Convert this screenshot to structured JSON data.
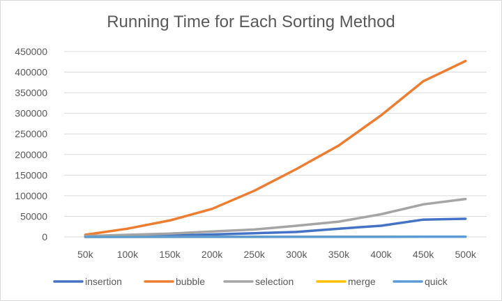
{
  "chart_data": {
    "type": "line",
    "title": "Running Time for Each Sorting Method",
    "xlabel": "",
    "ylabel": "",
    "categories": [
      "50k",
      "100k",
      "150k",
      "200k",
      "250k",
      "300k",
      "350k",
      "400k",
      "450k",
      "500k"
    ],
    "ylim": [
      0,
      450000
    ],
    "yticks": [
      0,
      50000,
      100000,
      150000,
      200000,
      250000,
      300000,
      350000,
      400000,
      450000
    ],
    "ytick_labels": [
      "0",
      "50000",
      "100000",
      "150000",
      "200000",
      "250000",
      "300000",
      "350000",
      "400000",
      "450000"
    ],
    "grid": true,
    "legend_position": "bottom",
    "series": [
      {
        "name": "insertion",
        "color": "#4472C4",
        "values": [
          1500,
          2000,
          3000,
          6000,
          9000,
          12000,
          20000,
          27000,
          42000,
          44000
        ]
      },
      {
        "name": "bubble",
        "color": "#ED7D31",
        "values": [
          5000,
          20000,
          40000,
          68000,
          112000,
          165000,
          222000,
          295000,
          378000,
          427000
        ]
      },
      {
        "name": "selection",
        "color": "#A5A5A5",
        "values": [
          2000,
          5000,
          8000,
          13000,
          18000,
          27000,
          37000,
          55000,
          79000,
          92000
        ]
      },
      {
        "name": "merge",
        "color": "#FFC000",
        "values": [
          50,
          100,
          150,
          200,
          250,
          300,
          350,
          400,
          450,
          500
        ]
      },
      {
        "name": "quick",
        "color": "#5B9BD5",
        "values": [
          30,
          60,
          90,
          120,
          150,
          180,
          210,
          240,
          270,
          300
        ]
      }
    ]
  }
}
